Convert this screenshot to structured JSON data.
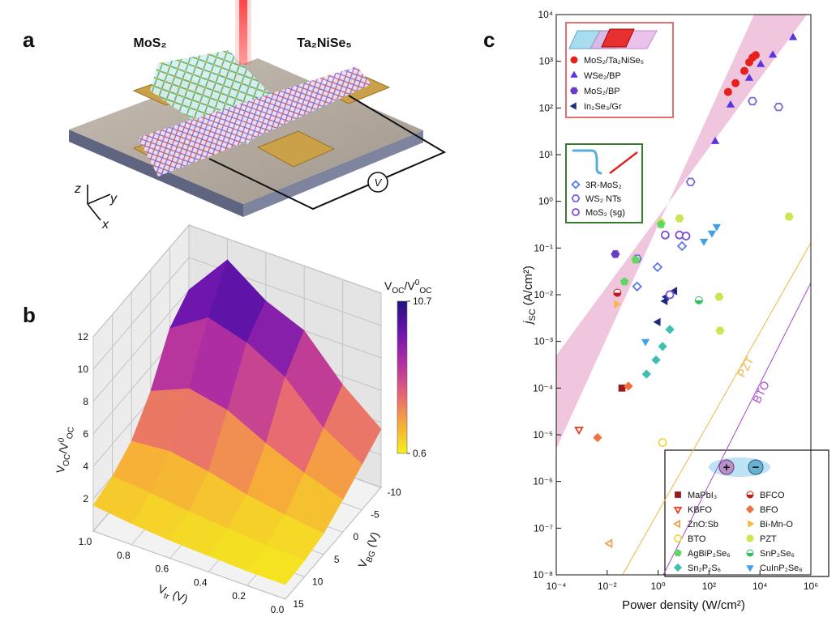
{
  "figure": {
    "panel_labels": [
      "a",
      "b",
      "c"
    ]
  },
  "illustration": {
    "materials": [
      "MoS₂",
      "Ta₂NiSe₅"
    ],
    "axes": [
      "z",
      "y",
      "x"
    ],
    "meter": "V"
  },
  "chart_data": [
    {
      "type": "surface",
      "x_label": [
        {
          "text": "V"
        },
        {
          "text": "tr",
          "script": "sub"
        },
        {
          "text": " (V)"
        }
      ],
      "y_label": [
        {
          "text": "V"
        },
        {
          "text": "BG",
          "script": "sub"
        },
        {
          "text": " (V)"
        }
      ],
      "z_label": [
        {
          "text": "V"
        },
        {
          "text": "OC",
          "script": "sub"
        },
        {
          "text": "/V"
        },
        {
          "text": "0",
          "script": "sup"
        },
        {
          "text": "OC",
          "script": "sub"
        }
      ],
      "x": [
        0,
        0.2,
        0.4,
        0.6,
        0.8,
        1.0
      ],
      "y": [
        -10,
        -5,
        0,
        5,
        10,
        15
      ],
      "z": [
        [
          3.6,
          2.8,
          2.0,
          1.3,
          1.0,
          0.9
        ],
        [
          5.5,
          4.2,
          2.8,
          1.6,
          1.1,
          0.9
        ],
        [
          8.0,
          6.5,
          3.8,
          2.0,
          1.3,
          1.0
        ],
        [
          9.0,
          7.8,
          5.0,
          2.6,
          1.5,
          1.1
        ],
        [
          10.7,
          8.5,
          5.5,
          3.0,
          1.8,
          1.3
        ],
        [
          8.0,
          7.0,
          4.5,
          2.8,
          2.0,
          1.6
        ]
      ],
      "xlim": [
        0,
        1
      ],
      "ylim": [
        -10,
        15
      ],
      "zlim": [
        0,
        12
      ],
      "xticks": [
        {
          "value": 1,
          "label": "1.0"
        },
        0.8,
        0.6,
        0.4,
        0.2,
        {
          "value": 0,
          "label": "0.0"
        }
      ],
      "yticks": [
        15,
        10,
        5,
        0,
        -5,
        -10
      ],
      "zticks": [
        2,
        4,
        6,
        8,
        10,
        12
      ],
      "grid": true,
      "colorbar": {
        "title": [
          {
            "text": "V"
          },
          {
            "text": "OC",
            "script": "sub"
          },
          {
            "text": "/V"
          },
          {
            "text": "0",
            "script": "sup"
          },
          {
            "text": "OC",
            "script": "sub"
          }
        ],
        "lim": [
          0.6,
          10.7
        ],
        "ticks": [
          10.7,
          0.6
        ],
        "colors": [
          "#f4f01c",
          "#f7a93a",
          "#e4607a",
          "#b02ea2",
          "#6a14b0",
          "#22127a"
        ]
      }
    },
    {
      "type": "scatter",
      "x_label": "Power density (W/cm²)",
      "y_label": [
        {
          "text": "j",
          "style": "italic"
        },
        {
          "text": "SC",
          "script": "sub"
        },
        {
          "text": " (A/cm²)"
        }
      ],
      "log_x": true,
      "log_y": true,
      "xlim": [
        0.0001,
        1000000
      ],
      "ylim": [
        1e-08,
        10000
      ],
      "xticks": [
        {
          "value": 0.0001,
          "label": "10⁻⁴"
        },
        {
          "value": 0.01,
          "label": "10⁻²"
        },
        {
          "value": 1,
          "label": "10⁰"
        },
        {
          "value": 100,
          "label": "10²"
        },
        {
          "value": 10000,
          "label": "10⁴"
        },
        {
          "value": 1000000,
          "label": "10⁶"
        }
      ],
      "yticks": [
        {
          "value": 1e-08,
          "label": "10⁻⁸"
        },
        {
          "value": 1e-07,
          "label": "10⁻⁷"
        },
        {
          "value": 1e-06,
          "label": "10⁻⁶"
        },
        {
          "value": 1e-05,
          "label": "10⁻⁵"
        },
        {
          "value": 0.0001,
          "label": "10⁻⁴"
        },
        {
          "value": 0.001,
          "label": "10⁻³"
        },
        {
          "value": 0.01,
          "label": "10⁻²"
        },
        {
          "value": 0.1,
          "label": "10⁻¹"
        },
        {
          "value": 1,
          "label": "10⁰"
        },
        {
          "value": 10,
          "label": "10¹"
        },
        {
          "value": 100,
          "label": "10²"
        },
        {
          "value": 1000,
          "label": "10³"
        },
        {
          "value": 10000,
          "label": "10⁴"
        }
      ],
      "band": {
        "color": "#ecbcd8",
        "upper": {
          "x": [
            0.0001,
            700000
          ],
          "y": [
            0.0005,
            10000
          ]
        },
        "lower": {
          "x": [
            0.0001,
            5900
          ],
          "y": [
            5e-06,
            10000
          ]
        }
      },
      "reference_lines": [
        {
          "label": "PZT",
          "color": "#f2b44a",
          "x": [
            0.04,
            1000000
          ],
          "y": [
            1e-08,
            0.13
          ]
        },
        {
          "label": "BTO",
          "color": "#a848d0",
          "x": [
            1.6,
            1000000
          ],
          "y": [
            1e-08,
            0.018
          ]
        }
      ],
      "charge_symbols": [
        "+",
        "−"
      ],
      "series": [
        {
          "name": "MoS₂/Ta₂NiSe₅",
          "color": "#e8201c",
          "marker": "circle",
          "filled": true,
          "x": [
            560,
            1100,
            2450,
            3800,
            5100,
            6800
          ],
          "values": [
            220,
            340,
            620,
            950,
            1200,
            1350
          ]
        },
        {
          "name": "WSe₂/BP",
          "color": "#5a34e0",
          "marker": "triangle-up",
          "filled": true,
          "x": [
            175,
            700,
            3800,
            10700,
            32000,
            200000
          ],
          "values": [
            19,
            115,
            430,
            850,
            1350,
            3200
          ]
        },
        {
          "name": "MoS₂/BP",
          "color": "#6a3cc8",
          "marker": "hexagon",
          "filled": true,
          "x": [
            0.021
          ],
          "values": [
            0.074
          ]
        },
        {
          "name": "In₂Se₃/Gr",
          "color": "#1a2a80",
          "marker": "triangle-left",
          "filled": true,
          "x": [
            1.0,
            1.9,
            2.1,
            4.5
          ],
          "values": [
            0.0026,
            0.0073,
            0.009,
            0.012
          ]
        },
        {
          "name": "3R-MoS₂",
          "color": "#5a7ae8",
          "marker": "diamond",
          "filled": false,
          "x": [
            0.15,
            0.95,
            8.7
          ],
          "values": [
            0.015,
            0.039,
            0.11
          ]
        },
        {
          "name": "WS₂ NTs",
          "color": "#7a6ae0",
          "marker": "hexagon",
          "filled": false,
          "x": [
            19,
            5100,
            54000,
            0.15
          ],
          "values": [
            2.6,
            140,
            105,
            0.059
          ]
        },
        {
          "name": "MoS₂ (sg)",
          "color": "#7a50d8",
          "marker": "circle",
          "filled": false,
          "x": [
            1.9,
            6.9,
            12.5,
            2.9
          ],
          "values": [
            0.19,
            0.19,
            0.18,
            0.01
          ]
        },
        {
          "name": "MaPbI₃",
          "color": "#9a1a1a",
          "marker": "square",
          "filled": true,
          "x": [
            0.038
          ],
          "values": [
            0.0001
          ]
        },
        {
          "name": "BFCO",
          "color": "#c41a1a",
          "marker": "half-circle",
          "filled": true,
          "x": [
            0.025
          ],
          "values": [
            0.011
          ]
        },
        {
          "name": "KBFO",
          "color": "#e84020",
          "marker": "triangle-down",
          "filled": false,
          "x": [
            0.00078
          ],
          "values": [
            1.3e-05
          ]
        },
        {
          "name": "BFO",
          "color": "#f07040",
          "marker": "diamond",
          "filled": true,
          "x": [
            0.0042,
            0.068
          ],
          "values": [
            8.7e-06,
            0.00011
          ]
        },
        {
          "name": "ZnO:Sb",
          "color": "#f0a050",
          "marker": "triangle-left",
          "filled": false,
          "x": [
            0.0126
          ],
          "values": [
            4.7e-08
          ]
        },
        {
          "name": "Bi-Mn-O",
          "color": "#f8b848",
          "marker": "triangle-right",
          "filled": true,
          "x": [
            0.023
          ],
          "values": [
            0.0063
          ]
        },
        {
          "name": "BTO",
          "color": "#f0d840",
          "marker": "circle",
          "filled": false,
          "x": [
            1.5
          ],
          "values": [
            6.8e-06
          ]
        },
        {
          "name": "PZT",
          "color": "#c8e850",
          "marker": "hexagon",
          "filled": true,
          "x": [
            1.3,
            6.9,
            250,
            270,
            140000
          ],
          "values": [
            0.35,
            0.43,
            0.009,
            0.0017,
            0.47
          ]
        },
        {
          "name": "AgBiP₂Se₆",
          "color": "#60d860",
          "marker": "pentagon",
          "filled": true,
          "x": [
            0.048,
            0.13,
            1.3
          ],
          "values": [
            0.019,
            0.056,
            0.32
          ]
        },
        {
          "name": "SnP₂Se₆",
          "color": "#30c060",
          "marker": "half-circle",
          "filled": true,
          "x": [
            40
          ],
          "values": [
            0.0076
          ]
        },
        {
          "name": "Sn₂P₂S₆",
          "color": "#40c0b0",
          "marker": "diamond",
          "filled": true,
          "x": [
            0.35,
            0.83,
            1.5,
            2.9
          ],
          "values": [
            0.0002,
            0.0004,
            0.00078,
            0.0018
          ]
        },
        {
          "name": "CuInP₂Se₆",
          "color": "#40a0e8",
          "marker": "triangle-down",
          "filled": true,
          "x": [
            0.32,
            63,
            130,
            200
          ],
          "values": [
            0.001,
            0.14,
            0.21,
            0.29
          ]
        }
      ]
    }
  ]
}
